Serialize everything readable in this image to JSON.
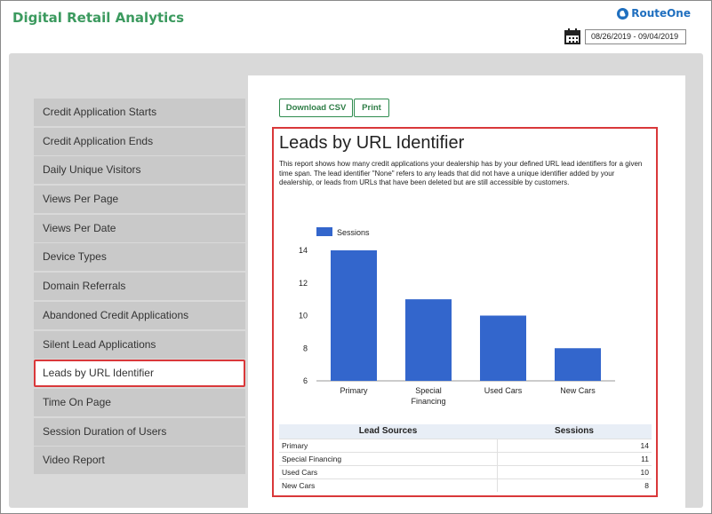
{
  "app": {
    "title": "Digital Retail Analytics",
    "logo_text": "RouteOne",
    "date_range": "08/26/2019 - 09/04/2019"
  },
  "sidebar": {
    "items": [
      {
        "label": "Credit Application Starts"
      },
      {
        "label": "Credit Application Ends"
      },
      {
        "label": "Daily Unique Visitors"
      },
      {
        "label": "Views Per Page"
      },
      {
        "label": "Views Per Date"
      },
      {
        "label": "Device Types"
      },
      {
        "label": "Domain Referrals"
      },
      {
        "label": "Abandoned Credit Applications"
      },
      {
        "label": "Silent Lead Applications"
      },
      {
        "label": "Leads by URL Identifier",
        "active": true
      },
      {
        "label": "Time On Page"
      },
      {
        "label": "Session Duration of Users"
      },
      {
        "label": "Video Report"
      }
    ]
  },
  "toolbar": {
    "download_label": "Download CSV",
    "print_label": "Print"
  },
  "report": {
    "title": "Leads by URL Identifier",
    "description": "This report shows how many credit applications your dealership has by your defined URL lead identifiers for a given time span. The lead identifier \"None\" refers to any leads that did not have a unique identifier added by your dealership, or leads from URLs that have been deleted but are still accessible by customers."
  },
  "chart_data": {
    "type": "bar",
    "categories": [
      "Primary",
      "Special Financing",
      "Used Cars",
      "New Cars"
    ],
    "series": [
      {
        "name": "Sessions",
        "values": [
          14,
          11,
          10,
          8
        ],
        "color": "#3366cc"
      }
    ],
    "ylim": [
      6,
      14
    ],
    "yticks": [
      6,
      8,
      10,
      12,
      14
    ],
    "legend": "top-left",
    "grid": false
  },
  "table": {
    "headers": [
      "Lead Sources",
      "Sessions"
    ],
    "rows": [
      [
        "Primary",
        "14"
      ],
      [
        "Special Financing",
        "11"
      ],
      [
        "Used Cars",
        "10"
      ],
      [
        "New Cars",
        "8"
      ]
    ]
  },
  "colors": {
    "brand_green": "#3c9a5f",
    "highlight_red": "#d9383a",
    "bar_blue": "#3366cc"
  }
}
